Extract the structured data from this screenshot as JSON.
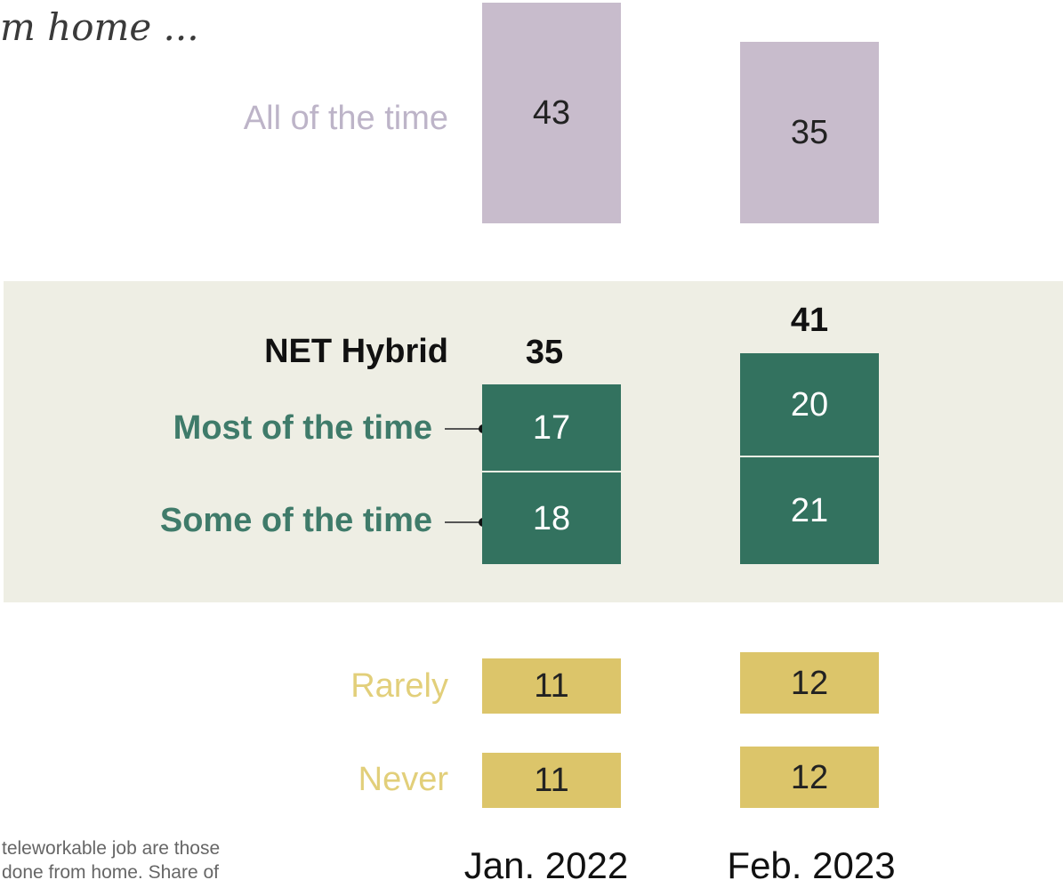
{
  "title_fragment": "m home ...",
  "footnote": {
    "line1": "teleworkable job are those",
    "line2": "done from home. Share of"
  },
  "colors": {
    "all": "#c8bccc",
    "hybrid": "#33725f",
    "rarely_never": "#dcc56a",
    "band": "#eeeee4"
  },
  "chart_data": {
    "type": "bar",
    "orientation": "stacked-blocks",
    "categories": [
      "Jan. 2022",
      "Feb. 2023"
    ],
    "series": [
      {
        "name": "All of the time",
        "values": [
          43,
          35
        ]
      },
      {
        "name": "Most of the time",
        "values": [
          17,
          20
        ]
      },
      {
        "name": "Some of the time",
        "values": [
          18,
          21
        ]
      },
      {
        "name": "Rarely",
        "values": [
          11,
          12
        ]
      },
      {
        "name": "Never",
        "values": [
          11,
          12
        ]
      }
    ],
    "net": {
      "name": "NET Hybrid",
      "values": [
        35,
        41
      ]
    },
    "title": "",
    "xlabel": "",
    "ylabel": ""
  },
  "labels": {
    "all": "All of the time",
    "net": "NET Hybrid",
    "most": "Most of the time",
    "some": "Some of the time",
    "rarely": "Rarely",
    "never": "Never"
  },
  "bars": {
    "all_0": "43",
    "all_1": "35",
    "most_0": "17",
    "most_1": "20",
    "some_0": "18",
    "some_1": "21",
    "rarely_0": "11",
    "rarely_1": "12",
    "never_0": "11",
    "never_1": "12",
    "net_0": "35",
    "net_1": "41"
  },
  "columns": {
    "c0": "Jan. 2022",
    "c1": "Feb. 2023"
  }
}
